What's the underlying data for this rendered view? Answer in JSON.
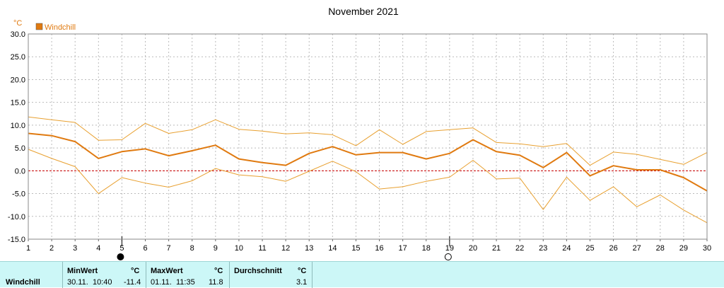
{
  "chart_data": {
    "type": "line",
    "title": "November 2021",
    "yunit": "°C",
    "ylim": [
      -15,
      30
    ],
    "yticks": [
      "30.0",
      "25.0",
      "20.0",
      "15.0",
      "10.0",
      "5.0",
      "0.0",
      "-5.0",
      "-10.0",
      "-15.0"
    ],
    "x": [
      1,
      2,
      3,
      4,
      5,
      6,
      7,
      8,
      9,
      10,
      11,
      12,
      13,
      14,
      15,
      16,
      17,
      18,
      19,
      20,
      21,
      22,
      23,
      24,
      25,
      26,
      27,
      28,
      29,
      30
    ],
    "legend": [
      {
        "name": "Windchill",
        "color": "#e07a10"
      }
    ],
    "series": [
      {
        "name": "Windchill",
        "role": "mean",
        "color": "#e07a10",
        "values": [
          8.2,
          7.7,
          6.4,
          2.7,
          4.2,
          4.8,
          3.3,
          4.4,
          5.6,
          2.6,
          1.8,
          1.2,
          3.8,
          5.3,
          3.5,
          4.0,
          4.0,
          2.6,
          3.8,
          6.8,
          4.2,
          3.4,
          0.7,
          4.0,
          -1.1,
          1.1,
          0.2,
          0.2,
          -1.5,
          -4.4
        ]
      },
      {
        "role": "max",
        "color": "#e8a030",
        "values": [
          11.8,
          11.2,
          10.6,
          6.7,
          6.8,
          10.4,
          8.2,
          9.0,
          11.2,
          9.1,
          8.7,
          8.1,
          8.3,
          7.9,
          5.5,
          9.0,
          5.8,
          8.6,
          9.0,
          9.4,
          6.2,
          5.9,
          5.3,
          6.0,
          1.2,
          4.1,
          3.6,
          2.5,
          1.4,
          4.0
        ]
      },
      {
        "role": "min",
        "color": "#e8a030",
        "values": [
          4.7,
          2.7,
          0.9,
          -5.0,
          -1.5,
          -2.7,
          -3.6,
          -2.2,
          0.5,
          -0.9,
          -1.3,
          -2.3,
          -0.1,
          2.1,
          -0.2,
          -4.0,
          -3.5,
          -2.3,
          -1.4,
          2.3,
          -1.8,
          -1.6,
          -8.5,
          -1.4,
          -6.5,
          -3.5,
          -7.9,
          -5.3,
          -8.6,
          -11.4
        ]
      }
    ],
    "moon_phases": [
      {
        "day": 5,
        "phase": "new-moon"
      },
      {
        "day": 19,
        "phase": "full-moon"
      }
    ],
    "grid": true,
    "zero_line": true
  },
  "stats": {
    "row_label": "Windchill",
    "min": {
      "header": "MinWert",
      "unit": "°C",
      "date": "30.11.",
      "time": "10:40",
      "value": "-11.4"
    },
    "max": {
      "header": "MaxWert",
      "unit": "°C",
      "date": "01.11.",
      "time": "11:35",
      "value": "11.8"
    },
    "avg": {
      "header": "Durchschnitt",
      "unit": "°C",
      "value": "3.1"
    }
  }
}
